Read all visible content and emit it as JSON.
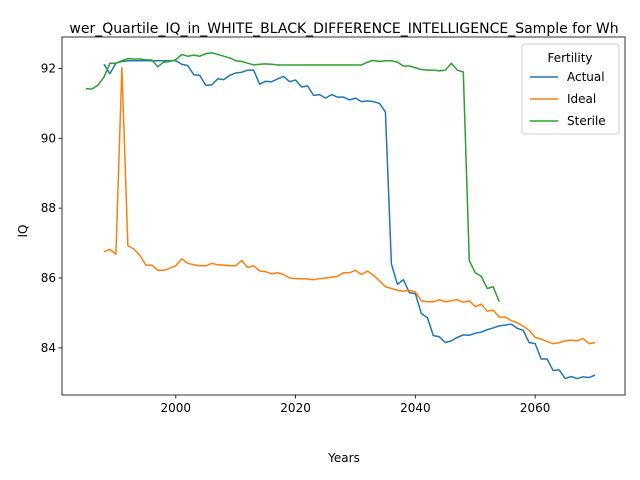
{
  "chart_data": {
    "type": "line",
    "title": "wer_Quartile_IQ_in_WHITE_BLACK_DIFFERENCE_INTELLIGENCE_Sample for Wh",
    "xlabel": "Years",
    "ylabel": "IQ",
    "xlim": [
      1981,
      2075
    ],
    "ylim": [
      82.65,
      92.9
    ],
    "x_ticks": [
      2000,
      2020,
      2040,
      2060
    ],
    "y_ticks": [
      84,
      86,
      88,
      90,
      92
    ],
    "grid": false,
    "legend": {
      "title": "Fertility",
      "placement": "top-right"
    },
    "series": [
      {
        "name": "Actual",
        "color": "#1f77b4",
        "x": [
          1988,
          1989,
          1990,
          1991,
          1992,
          1993,
          1994,
          1995,
          1996,
          1997,
          1998,
          1999,
          2000,
          2001,
          2002,
          2003,
          2004,
          2005,
          2006,
          2007,
          2008,
          2009,
          2010,
          2011,
          2012,
          2013,
          2014,
          2015,
          2016,
          2017,
          2018,
          2019,
          2020,
          2021,
          2022,
          2023,
          2024,
          2025,
          2026,
          2027,
          2028,
          2029,
          2030,
          2031,
          2032,
          2033,
          2034,
          2035,
          2036,
          2037,
          2038,
          2039,
          2040,
          2041,
          2042,
          2043,
          2044,
          2045,
          2046,
          2047,
          2048,
          2049,
          2050,
          2051,
          2052,
          2053,
          2054,
          2055,
          2056,
          2057,
          2058,
          2059,
          2060,
          2061,
          2062,
          2063,
          2064,
          2065,
          2066,
          2067,
          2068,
          2069,
          2070
        ],
        "values": [
          92.12,
          91.85,
          92.15,
          92.2,
          92.22,
          92.22,
          92.22,
          92.22,
          92.22,
          92.22,
          92.22,
          92.22,
          92.22,
          92.12,
          92.08,
          91.82,
          91.8,
          91.52,
          91.53,
          91.7,
          91.68,
          91.8,
          91.87,
          91.89,
          91.95,
          91.95,
          91.55,
          91.63,
          91.62,
          91.7,
          91.77,
          91.62,
          91.67,
          91.47,
          91.5,
          91.23,
          91.25,
          91.15,
          91.25,
          91.18,
          91.18,
          91.1,
          91.15,
          91.05,
          91.07,
          91.05,
          91.0,
          90.75,
          86.4,
          85.82,
          85.95,
          85.58,
          85.55,
          84.98,
          84.87,
          84.35,
          84.32,
          84.15,
          84.2,
          84.3,
          84.37,
          84.36,
          84.42,
          84.45,
          84.52,
          84.57,
          84.63,
          84.65,
          84.68,
          84.56,
          84.5,
          84.15,
          84.12,
          83.68,
          83.68,
          83.35,
          83.37,
          83.12,
          83.18,
          83.12,
          83.17,
          83.15,
          83.22
        ]
      },
      {
        "name": "Ideal",
        "color": "#ff7f0e",
        "x": [
          1988,
          1989,
          1990,
          1991,
          1992,
          1993,
          1994,
          1995,
          1996,
          1997,
          1998,
          1999,
          2000,
          2001,
          2002,
          2003,
          2004,
          2005,
          2006,
          2007,
          2008,
          2009,
          2010,
          2011,
          2012,
          2013,
          2014,
          2015,
          2016,
          2017,
          2018,
          2019,
          2020,
          2021,
          2022,
          2023,
          2024,
          2025,
          2026,
          2027,
          2028,
          2029,
          2030,
          2031,
          2032,
          2033,
          2034,
          2035,
          2036,
          2037,
          2038,
          2039,
          2040,
          2041,
          2042,
          2043,
          2044,
          2045,
          2046,
          2047,
          2048,
          2049,
          2050,
          2051,
          2052,
          2053,
          2054,
          2055,
          2056,
          2057,
          2058,
          2059,
          2060,
          2061,
          2062,
          2063,
          2064,
          2065,
          2066,
          2067,
          2068,
          2069,
          2070
        ],
        "values": [
          86.75,
          86.82,
          86.68,
          92.02,
          86.92,
          86.83,
          86.65,
          86.37,
          86.37,
          86.22,
          86.22,
          86.28,
          86.35,
          86.55,
          86.42,
          86.38,
          86.35,
          86.35,
          86.42,
          86.38,
          86.37,
          86.35,
          86.35,
          86.5,
          86.3,
          86.35,
          86.2,
          86.18,
          86.12,
          86.15,
          86.1,
          86.0,
          85.98,
          85.98,
          85.97,
          85.95,
          85.98,
          86.0,
          86.02,
          86.05,
          86.15,
          86.15,
          86.22,
          86.1,
          86.2,
          86.08,
          85.92,
          85.75,
          85.7,
          85.65,
          85.62,
          85.65,
          85.6,
          85.35,
          85.32,
          85.32,
          85.38,
          85.32,
          85.35,
          85.38,
          85.3,
          85.35,
          85.18,
          85.25,
          85.05,
          85.08,
          84.88,
          84.88,
          84.78,
          84.72,
          84.62,
          84.5,
          84.3,
          84.25,
          84.18,
          84.12,
          84.15,
          84.2,
          84.22,
          84.2,
          84.27,
          84.12,
          84.15
        ]
      },
      {
        "name": "Sterile",
        "color": "#2ca02c",
        "x": [
          1985,
          1986,
          1987,
          1988,
          1989,
          1990,
          1991,
          1992,
          1993,
          1994,
          1995,
          1996,
          1997,
          1998,
          1999,
          2000,
          2001,
          2002,
          2003,
          2004,
          2005,
          2006,
          2007,
          2008,
          2009,
          2010,
          2011,
          2012,
          2013,
          2014,
          2015,
          2016,
          2017,
          2018,
          2019,
          2020,
          2021,
          2022,
          2023,
          2024,
          2025,
          2026,
          2027,
          2028,
          2029,
          2030,
          2031,
          2032,
          2033,
          2034,
          2035,
          2036,
          2037,
          2038,
          2039,
          2040,
          2041,
          2042,
          2043,
          2044,
          2045,
          2046,
          2047,
          2048,
          2049,
          2050,
          2051,
          2052,
          2053,
          2054
        ],
        "values": [
          91.42,
          91.41,
          91.52,
          91.75,
          92.15,
          92.15,
          92.22,
          92.28,
          92.27,
          92.27,
          92.25,
          92.24,
          92.05,
          92.18,
          92.2,
          92.25,
          92.4,
          92.35,
          92.38,
          92.35,
          92.42,
          92.45,
          92.4,
          92.35,
          92.3,
          92.22,
          92.2,
          92.15,
          92.1,
          92.12,
          92.13,
          92.12,
          92.1,
          92.1,
          92.1,
          92.1,
          92.1,
          92.1,
          92.1,
          92.1,
          92.1,
          92.1,
          92.1,
          92.1,
          92.1,
          92.1,
          92.1,
          92.18,
          92.23,
          92.2,
          92.22,
          92.22,
          92.18,
          92.07,
          92.07,
          92.02,
          91.97,
          91.95,
          91.95,
          91.93,
          91.95,
          92.15,
          91.95,
          91.9,
          86.5,
          86.15,
          86.05,
          85.7,
          85.75,
          85.32
        ]
      }
    ]
  }
}
